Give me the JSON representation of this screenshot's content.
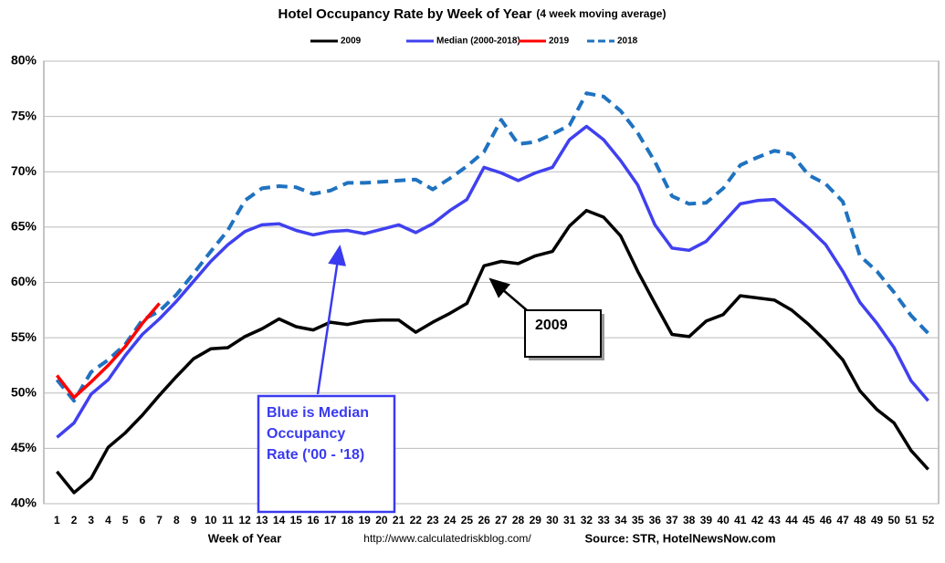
{
  "chart_data": {
    "type": "line",
    "title": "Hotel Occupancy Rate by  Week of Year",
    "subtitle": "(4 week moving average)",
    "x_label": "Week of Year",
    "url": "http://www.calculatedriskblog.com/",
    "source": "Source: STR, HotelNewsNow.com",
    "categories": [
      1,
      2,
      3,
      4,
      5,
      6,
      7,
      8,
      9,
      10,
      11,
      12,
      13,
      14,
      15,
      16,
      17,
      18,
      19,
      20,
      21,
      22,
      23,
      24,
      25,
      26,
      27,
      28,
      29,
      30,
      31,
      32,
      33,
      34,
      35,
      36,
      37,
      38,
      39,
      40,
      41,
      42,
      43,
      44,
      45,
      46,
      47,
      48,
      49,
      50,
      51,
      52
    ],
    "series": [
      {
        "name": "2009",
        "color": "#000000",
        "dashed": false,
        "values": [
          42.9,
          41.0,
          42.3,
          45.1,
          46.4,
          48.0,
          49.8,
          51.5,
          53.1,
          54.0,
          54.1,
          55.1,
          55.8,
          56.7,
          56.0,
          55.7,
          56.4,
          56.2,
          56.5,
          56.6,
          56.6,
          55.5,
          56.4,
          57.2,
          58.1,
          61.5,
          61.9,
          61.7,
          62.4,
          62.8,
          65.1,
          66.5,
          65.9,
          64.2,
          61.0,
          58.1,
          55.3,
          55.1,
          56.5,
          57.1,
          58.8,
          58.6,
          58.4,
          57.5,
          56.2,
          54.7,
          53.0,
          50.2,
          48.5,
          47.3,
          44.8,
          43.1
        ]
      },
      {
        "name": "Median (2000-2018)",
        "color": "#4040f0",
        "dashed": false,
        "values": [
          46.0,
          47.3,
          49.9,
          51.2,
          53.4,
          55.3,
          56.7,
          58.3,
          60.1,
          61.9,
          63.4,
          64.6,
          65.2,
          65.3,
          64.7,
          64.3,
          64.6,
          64.7,
          64.4,
          64.8,
          65.2,
          64.5,
          65.3,
          66.5,
          67.5,
          70.4,
          69.9,
          69.2,
          69.9,
          70.4,
          72.9,
          74.1,
          72.9,
          71.0,
          68.8,
          65.2,
          63.1,
          62.9,
          63.7,
          65.4,
          67.1,
          67.4,
          67.5,
          66.2,
          64.9,
          63.4,
          61.0,
          58.2,
          56.3,
          54.1,
          51.1,
          49.3
        ]
      },
      {
        "name": "2019",
        "color": "#ff0000",
        "dashed": false,
        "values": [
          51.6,
          49.6,
          51.0,
          52.5,
          54.2,
          56.3,
          58.1,
          null,
          null,
          null,
          null,
          null,
          null,
          null,
          null,
          null,
          null,
          null,
          null,
          null,
          null,
          null,
          null,
          null,
          null,
          null,
          null,
          null,
          null,
          null,
          null,
          null,
          null,
          null,
          null,
          null,
          null,
          null,
          null,
          null,
          null,
          null,
          null,
          null,
          null,
          null,
          null,
          null,
          null,
          null,
          null,
          null
        ]
      },
      {
        "name": "2018",
        "color": "#1f72c0",
        "dashed": true,
        "values": [
          51.2,
          49.3,
          51.9,
          53.0,
          54.4,
          56.6,
          57.4,
          58.9,
          60.8,
          62.8,
          64.7,
          67.4,
          68.5,
          68.7,
          68.6,
          68.0,
          68.3,
          69.0,
          69.0,
          69.1,
          69.2,
          69.3,
          68.4,
          69.4,
          70.5,
          71.8,
          74.7,
          72.5,
          72.7,
          73.4,
          74.2,
          77.1,
          76.8,
          75.5,
          73.5,
          70.9,
          67.8,
          67.1,
          67.2,
          68.5,
          70.6,
          71.3,
          71.9,
          71.6,
          69.7,
          68.9,
          67.3,
          62.4,
          61.0,
          59.1,
          57.0,
          55.4
        ]
      }
    ],
    "ylim": [
      40,
      80
    ],
    "yticks": [
      {
        "value": 40,
        "label": "40%"
      },
      {
        "value": 45,
        "label": "45%"
      },
      {
        "value": 50,
        "label": "50%"
      },
      {
        "value": 55,
        "label": "55%"
      },
      {
        "value": 60,
        "label": "60%"
      },
      {
        "value": 65,
        "label": "65%"
      },
      {
        "value": 70,
        "label": "70%"
      },
      {
        "value": 75,
        "label": "75%"
      },
      {
        "value": 80,
        "label": "80%"
      }
    ],
    "grid": true,
    "legend": "top",
    "annotations": [
      {
        "lines": [
          "2009"
        ],
        "color": "#000000"
      },
      {
        "lines": [
          "Blue is Median",
          "Occupancy",
          "Rate ('00 - '18)"
        ],
        "color": "#3a3af0"
      }
    ]
  }
}
